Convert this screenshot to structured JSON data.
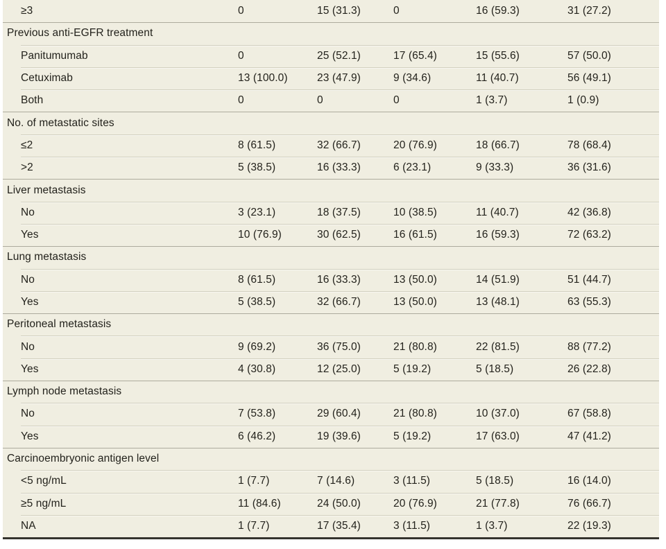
{
  "colors": {
    "page_background": "#ffffff",
    "row_background": "#f0eee1",
    "row_divider": "#d2d0bf",
    "section_divider": "#adab9d",
    "bottom_border": "#35342e",
    "text": "#23221c"
  },
  "table": {
    "description": "Cropped lower portion of a clinical characteristics table with five data columns of n (%) values",
    "rows": [
      {
        "type": "data",
        "sep": "none",
        "label": "≥3",
        "values": [
          "0",
          "15 (31.3)",
          "0",
          "16 (59.3)",
          "31 (27.2)"
        ]
      },
      {
        "type": "section",
        "sep": "section",
        "label": "Previous anti-EGFR treatment",
        "values": []
      },
      {
        "type": "data",
        "sep": "light",
        "label": "Panitumumab",
        "values": [
          "0",
          "25 (52.1)",
          "17 (65.4)",
          "15 (55.6)",
          "57 (50.0)"
        ]
      },
      {
        "type": "data",
        "sep": "light",
        "label": "Cetuximab",
        "values": [
          "13 (100.0)",
          "23 (47.9)",
          "9 (34.6)",
          "11 (40.7)",
          "56 (49.1)"
        ]
      },
      {
        "type": "data",
        "sep": "light",
        "label": "Both",
        "values": [
          "0",
          "0",
          "0",
          "1 (3.7)",
          "1 (0.9)"
        ]
      },
      {
        "type": "section",
        "sep": "section",
        "label": "No. of metastatic sites",
        "values": []
      },
      {
        "type": "data",
        "sep": "light",
        "label": "≤2",
        "values": [
          "8 (61.5)",
          "32 (66.7)",
          "20 (76.9)",
          "18 (66.7)",
          "78 (68.4)"
        ]
      },
      {
        "type": "data",
        "sep": "light",
        "label": ">2",
        "values": [
          "5 (38.5)",
          "16 (33.3)",
          "6 (23.1)",
          "9 (33.3)",
          "36 (31.6)"
        ]
      },
      {
        "type": "section",
        "sep": "section",
        "label": "Liver metastasis",
        "values": []
      },
      {
        "type": "data",
        "sep": "light",
        "label": "No",
        "values": [
          "3 (23.1)",
          "18 (37.5)",
          "10 (38.5)",
          "11 (40.7)",
          "42 (36.8)"
        ]
      },
      {
        "type": "data",
        "sep": "light",
        "label": "Yes",
        "values": [
          "10 (76.9)",
          "30 (62.5)",
          "16 (61.5)",
          "16 (59.3)",
          "72 (63.2)"
        ]
      },
      {
        "type": "section",
        "sep": "section",
        "label": "Lung metastasis",
        "values": []
      },
      {
        "type": "data",
        "sep": "light",
        "label": "No",
        "values": [
          "8 (61.5)",
          "16 (33.3)",
          "13 (50.0)",
          "14 (51.9)",
          "51 (44.7)"
        ]
      },
      {
        "type": "data",
        "sep": "light",
        "label": "Yes",
        "values": [
          "5 (38.5)",
          "32 (66.7)",
          "13 (50.0)",
          "13 (48.1)",
          "63 (55.3)"
        ]
      },
      {
        "type": "section",
        "sep": "section",
        "label": "Peritoneal metastasis",
        "values": []
      },
      {
        "type": "data",
        "sep": "light",
        "label": "No",
        "values": [
          "9 (69.2)",
          "36 (75.0)",
          "21 (80.8)",
          "22 (81.5)",
          "88 (77.2)"
        ]
      },
      {
        "type": "data",
        "sep": "light",
        "label": "Yes",
        "values": [
          "4 (30.8)",
          "12 (25.0)",
          "5 (19.2)",
          "5 (18.5)",
          "26 (22.8)"
        ]
      },
      {
        "type": "section",
        "sep": "section",
        "label": "Lymph node metastasis",
        "values": []
      },
      {
        "type": "data",
        "sep": "light",
        "label": "No",
        "values": [
          "7 (53.8)",
          "29 (60.4)",
          "21 (80.8)",
          "10 (37.0)",
          "67 (58.8)"
        ]
      },
      {
        "type": "data",
        "sep": "light",
        "label": "Yes",
        "values": [
          "6 (46.2)",
          "19 (39.6)",
          "5 (19.2)",
          "17 (63.0)",
          "47 (41.2)"
        ]
      },
      {
        "type": "section",
        "sep": "section",
        "label": "Carcinoembryonic antigen level",
        "values": []
      },
      {
        "type": "data",
        "sep": "light",
        "label": "<5 ng/mL",
        "values": [
          "1 (7.7)",
          "7 (14.6)",
          "3 (11.5)",
          "5 (18.5)",
          "16 (14.0)"
        ]
      },
      {
        "type": "data",
        "sep": "light",
        "label": "≥5 ng/mL",
        "values": [
          "11 (84.6)",
          "24 (50.0)",
          "20 (76.9)",
          "21 (77.8)",
          "76 (66.7)"
        ]
      },
      {
        "type": "data",
        "sep": "light",
        "label": "NA",
        "values": [
          "1 (7.7)",
          "17 (35.4)",
          "3 (11.5)",
          "1 (3.7)",
          "22 (19.3)"
        ]
      }
    ]
  }
}
